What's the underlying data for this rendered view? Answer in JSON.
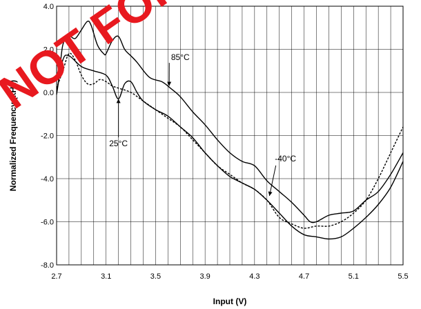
{
  "chart_data": {
    "type": "line",
    "xlabel": "Input (V)",
    "ylabel": "Normalized Frequency (kHz)",
    "xlim": [
      2.7,
      5.5
    ],
    "ylim": [
      -8.0,
      4.0
    ],
    "xticks": [
      2.7,
      3.1,
      3.5,
      3.9,
      4.3,
      4.7,
      5.1,
      5.5
    ],
    "xtick_labels": [
      "2.7",
      "3.1",
      "3.5",
      "3.9",
      "4.3",
      "4.7",
      "5.1",
      "5.5"
    ],
    "yticks": [
      4.0,
      2.0,
      0.0,
      -2.0,
      -4.0,
      -6.0,
      -8.0
    ],
    "ytick_labels": [
      "4.0",
      "2.0",
      "0.0",
      "-2.0",
      "-4.0",
      "-6.0",
      "-8.0"
    ],
    "grid": true,
    "series": [
      {
        "name": "85°C",
        "style": "solid",
        "x": [
          2.7,
          2.72,
          2.75,
          2.8,
          2.85,
          2.9,
          2.95,
          2.98,
          3.03,
          3.08,
          3.1,
          3.15,
          3.2,
          3.25,
          3.3,
          3.35,
          3.45,
          3.55,
          3.62,
          3.7,
          3.8,
          3.9,
          4.0,
          4.1,
          4.2,
          4.3,
          4.4,
          4.5,
          4.6,
          4.7,
          4.75,
          4.8,
          4.9,
          5.0,
          5.1,
          5.2,
          5.3,
          5.4,
          5.5
        ],
        "y": [
          -0.1,
          0.7,
          2.2,
          2.6,
          2.5,
          2.9,
          3.3,
          3.1,
          2.2,
          1.8,
          1.8,
          2.4,
          2.6,
          2.0,
          1.7,
          1.4,
          0.7,
          0.5,
          0.2,
          -0.2,
          -0.9,
          -1.5,
          -2.2,
          -2.8,
          -3.2,
          -3.4,
          -4.1,
          -4.6,
          -5.1,
          -5.7,
          -6.0,
          -6.0,
          -5.7,
          -5.6,
          -5.5,
          -5.0,
          -4.6,
          -3.8,
          -2.8
        ]
      },
      {
        "name": "25°C",
        "style": "solid",
        "x": [
          2.7,
          2.75,
          2.8,
          2.9,
          3.0,
          3.1,
          3.15,
          3.2,
          3.25,
          3.3,
          3.35,
          3.4,
          3.5,
          3.6,
          3.7,
          3.8,
          3.9,
          4.0,
          4.1,
          4.2,
          4.3,
          4.4,
          4.5,
          4.6,
          4.7,
          4.8,
          4.9,
          5.0,
          5.1,
          5.2,
          5.3,
          5.4,
          5.5
        ],
        "y": [
          0.0,
          1.5,
          1.7,
          1.2,
          1.0,
          0.8,
          0.3,
          -0.3,
          0.4,
          0.5,
          0.0,
          -0.4,
          -0.8,
          -1.1,
          -1.6,
          -2.1,
          -2.8,
          -3.4,
          -3.9,
          -4.2,
          -4.5,
          -5.0,
          -5.6,
          -6.2,
          -6.6,
          -6.7,
          -6.8,
          -6.7,
          -6.3,
          -5.8,
          -5.2,
          -4.4,
          -3.2
        ]
      },
      {
        "name": "-40°C",
        "style": "dashed",
        "x": [
          2.7,
          2.75,
          2.8,
          2.85,
          2.9,
          2.95,
          3.0,
          3.05,
          3.1,
          3.15,
          3.2,
          3.3,
          3.4,
          3.5,
          3.6,
          3.7,
          3.8,
          3.9,
          4.0,
          4.1,
          4.2,
          4.3,
          4.4,
          4.5,
          4.6,
          4.7,
          4.8,
          4.9,
          5.0,
          5.1,
          5.2,
          5.3,
          5.4,
          5.5
        ],
        "y": [
          0.2,
          1.0,
          1.8,
          1.5,
          0.8,
          0.4,
          0.4,
          0.6,
          0.5,
          0.3,
          0.2,
          0.0,
          -0.4,
          -0.8,
          -1.2,
          -1.6,
          -2.2,
          -2.8,
          -3.4,
          -3.8,
          -4.2,
          -4.5,
          -5.0,
          -5.8,
          -6.1,
          -6.3,
          -6.2,
          -6.2,
          -6.0,
          -5.6,
          -5.0,
          -4.0,
          -2.8,
          -1.6
        ]
      }
    ],
    "annotations": [
      {
        "text": "85°C",
        "x": 3.7,
        "y": 1.5,
        "arrow_to": {
          "x": 3.61,
          "y": 0.3
        }
      },
      {
        "text": "25°C",
        "x": 3.2,
        "y": -2.5,
        "arrow_to": {
          "x": 3.2,
          "y": -0.3
        }
      },
      {
        "text": "-40°C",
        "x": 4.55,
        "y": -3.2,
        "arrow_to": {
          "x": 4.42,
          "y": -4.8
        }
      }
    ],
    "watermark": "NOT FOR NEW DESIGNS"
  },
  "colors": {
    "line": "#000000",
    "grid": "#000000",
    "watermark": "#e8191f"
  }
}
